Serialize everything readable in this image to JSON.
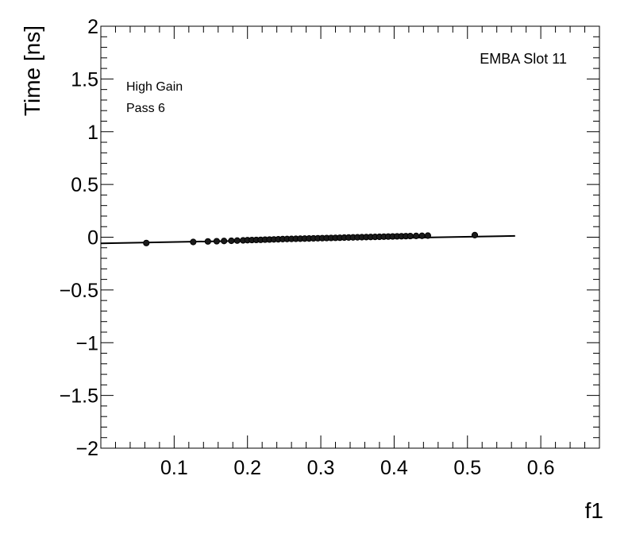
{
  "chart_data": {
    "type": "scatter",
    "title": "",
    "xlabel": "f1",
    "ylabel": "Time [ns]",
    "xlim": [
      0.0,
      0.68
    ],
    "ylim": [
      -2,
      2
    ],
    "xticks": [
      0.1,
      0.2,
      0.3,
      0.4,
      0.5,
      0.6
    ],
    "xtick_labels": [
      "0.1",
      "0.2",
      "0.3",
      "0.4",
      "0.5",
      "0.6"
    ],
    "yticks": [
      -2,
      -1.5,
      -1,
      -0.5,
      0,
      0.5,
      1,
      1.5,
      2
    ],
    "ytick_labels": [
      "−2",
      "−1.5",
      "−1",
      "−0.5",
      "0",
      "0.5",
      "1",
      "1.5",
      "2"
    ],
    "grid": false,
    "annotations": {
      "gain": "High Gain",
      "pass": "Pass 6",
      "slot": "EMBA Slot 11"
    },
    "series": [
      {
        "x": [
          0.062,
          0.126,
          0.146,
          0.158,
          0.168,
          0.178,
          0.186,
          0.194,
          0.2,
          0.206,
          0.212,
          0.218,
          0.224,
          0.23,
          0.236,
          0.242,
          0.248,
          0.254,
          0.26,
          0.266,
          0.272,
          0.278,
          0.284,
          0.29,
          0.296,
          0.302,
          0.308,
          0.314,
          0.32,
          0.326,
          0.332,
          0.338,
          0.344,
          0.35,
          0.356,
          0.362,
          0.368,
          0.374,
          0.38,
          0.386,
          0.392,
          0.398,
          0.404,
          0.41,
          0.416,
          0.422,
          0.43,
          0.438,
          0.446,
          0.51
        ],
        "y": [
          -0.055,
          -0.045,
          -0.04,
          -0.038,
          -0.036,
          -0.034,
          -0.032,
          -0.03,
          -0.028,
          -0.027,
          -0.026,
          -0.025,
          -0.023,
          -0.022,
          -0.021,
          -0.02,
          -0.018,
          -0.017,
          -0.016,
          -0.015,
          -0.014,
          -0.013,
          -0.012,
          -0.011,
          -0.01,
          -0.009,
          -0.008,
          -0.007,
          -0.006,
          -0.005,
          -0.004,
          -0.003,
          -0.002,
          -0.001,
          0.0,
          0.001,
          0.002,
          0.003,
          0.004,
          0.005,
          0.006,
          0.007,
          0.008,
          0.009,
          0.01,
          0.011,
          0.012,
          0.013,
          0.015,
          0.02
        ]
      }
    ],
    "fit_line": {
      "x": [
        0.0,
        0.565
      ],
      "y": [
        -0.058,
        0.012
      ]
    }
  }
}
